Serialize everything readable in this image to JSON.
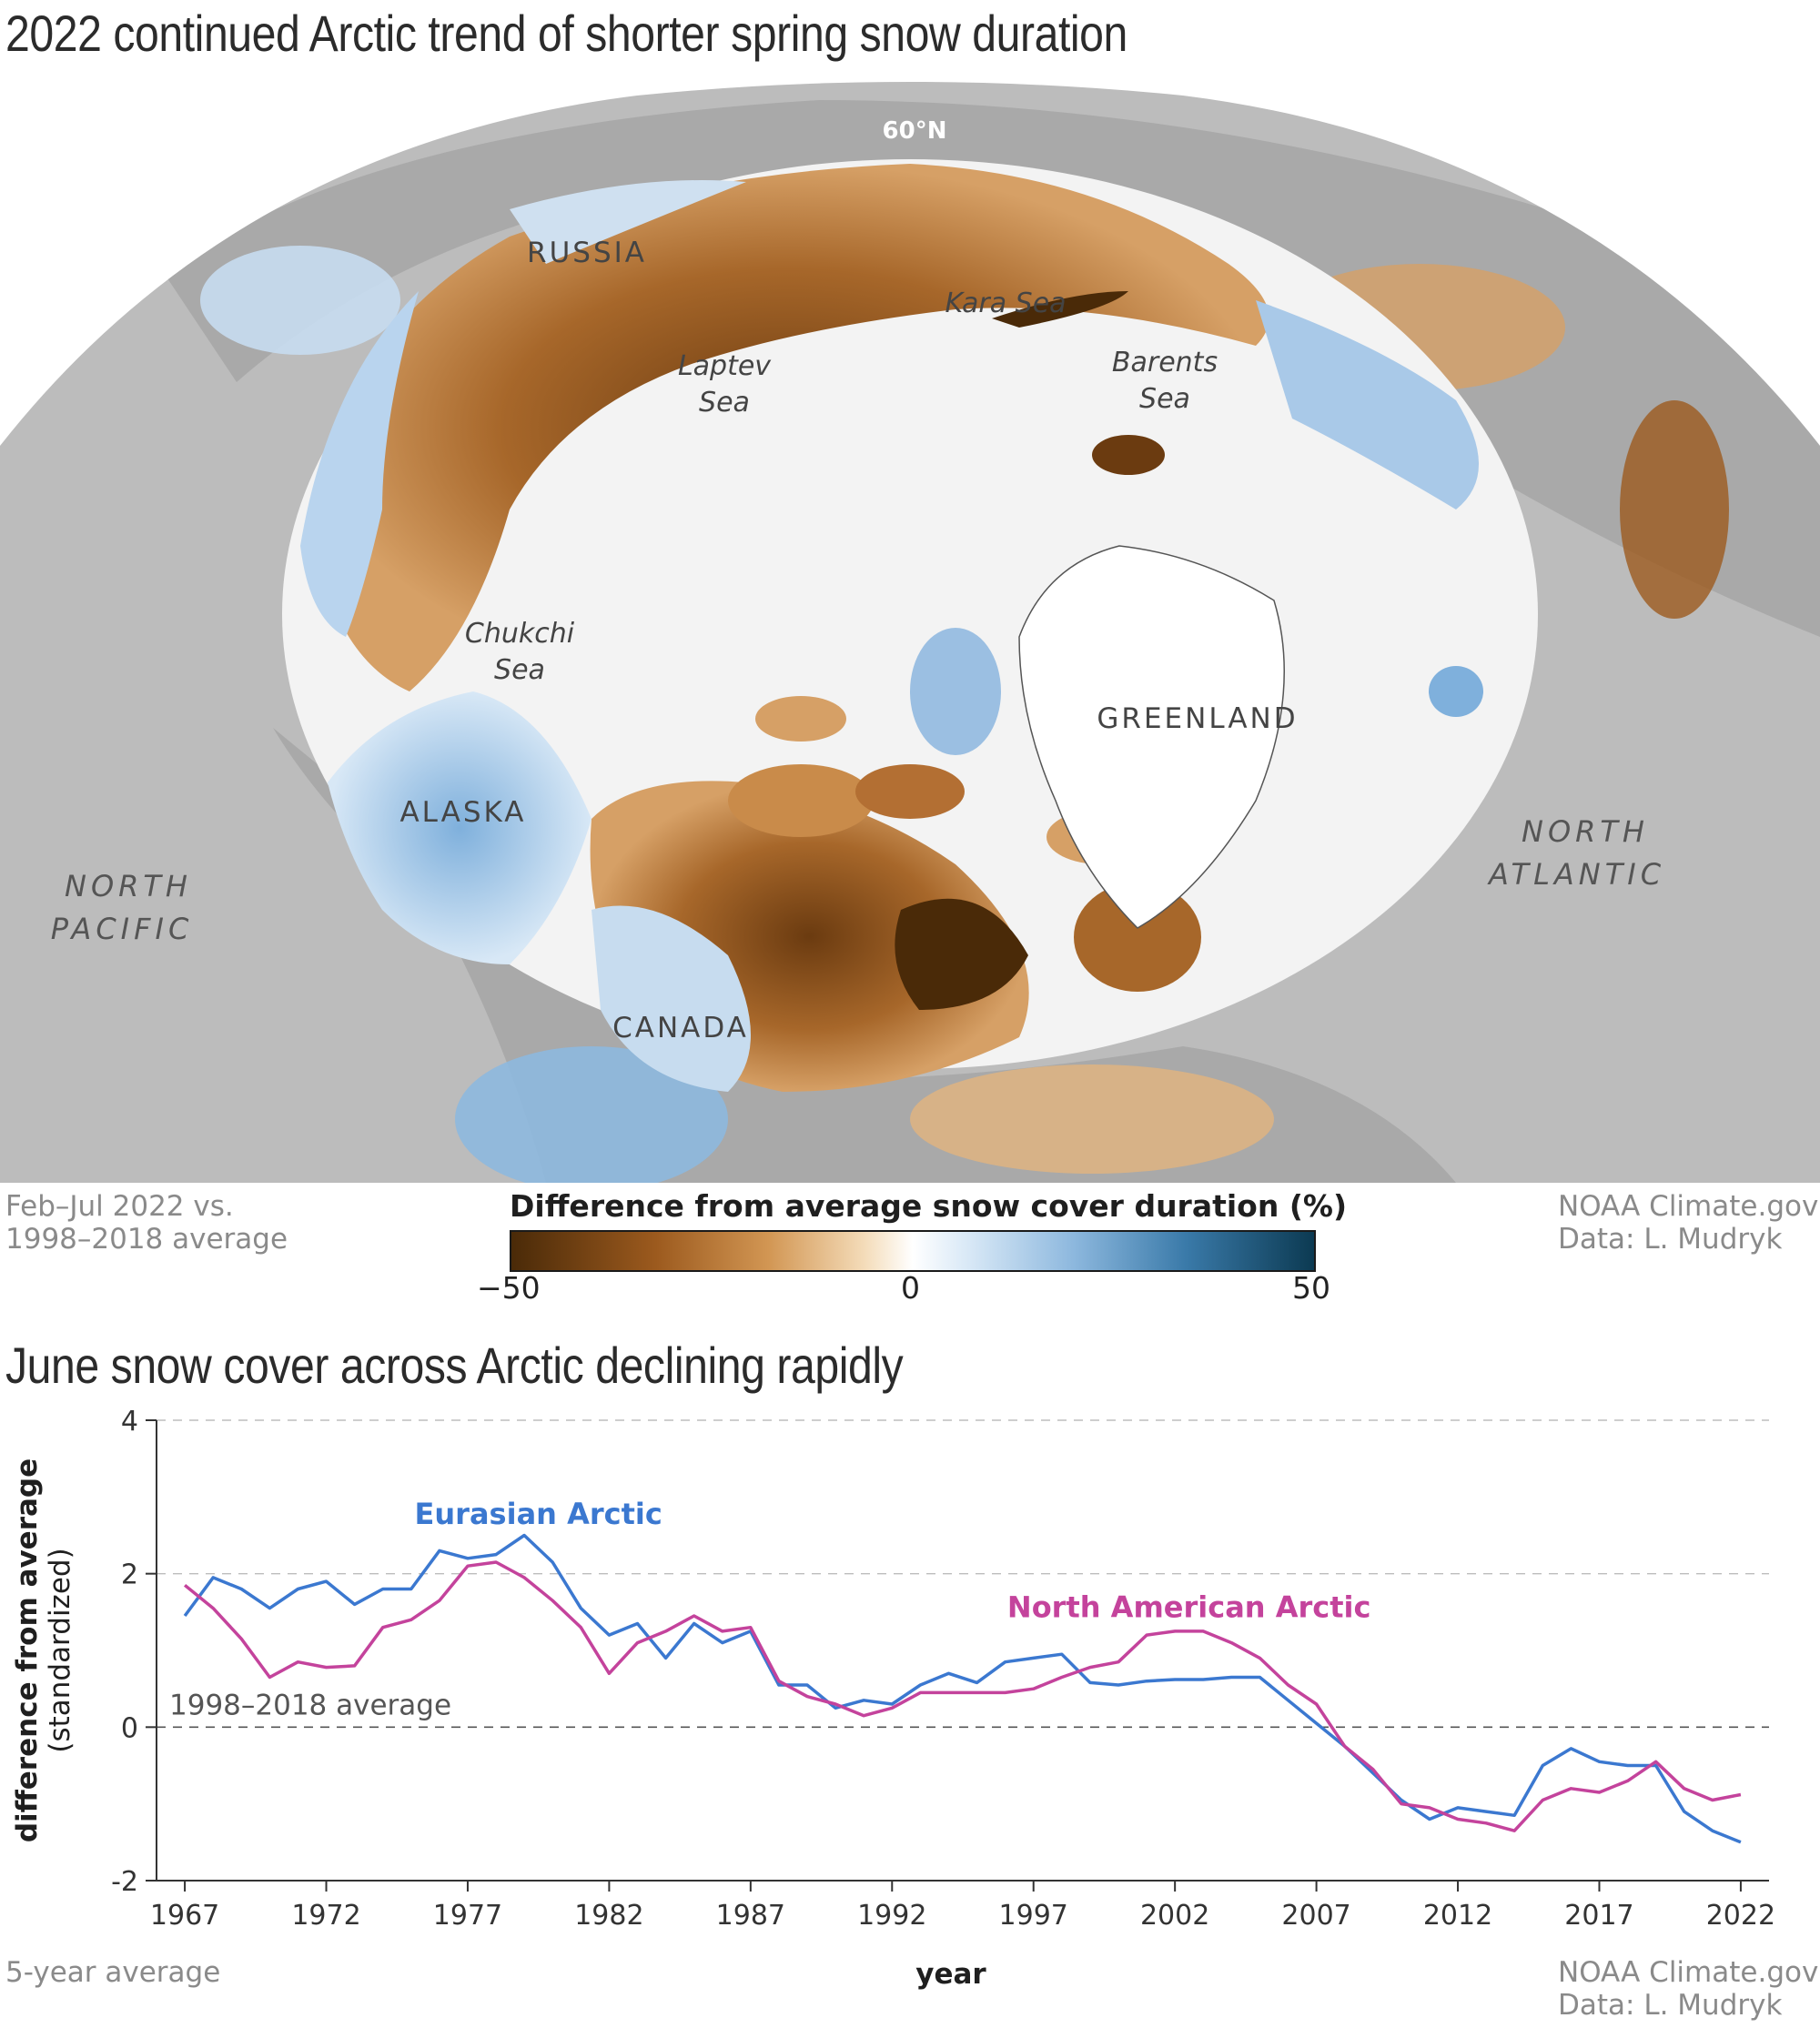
{
  "map": {
    "title": "2022 continued Arctic trend of shorter spring snow duration",
    "latitude_label": "60°N",
    "labels": {
      "russia": "RUSSIA",
      "kara_sea": "Kara Sea",
      "laptev_sea_1": "Laptev",
      "laptev_sea_2": "Sea",
      "barents_sea_1": "Barents",
      "barents_sea_2": "Sea",
      "chukchi_sea_1": "Chukchi",
      "chukchi_sea_2": "Sea",
      "greenland": "GREENLAND",
      "alaska": "ALASKA",
      "canada": "CANADA",
      "north_pacific_1": "NORTH",
      "north_pacific_2": "PACIFIC",
      "north_atlantic_1": "NORTH",
      "north_atlantic_2": "ATLANTIC"
    },
    "period_note_1": "Feb–Jul 2022 vs.",
    "period_note_2": "1998–2018 average",
    "credit_1": "NOAA Climate.gov",
    "credit_2": "Data: L. Mudryk",
    "legend": {
      "title": "Difference from average snow cover duration (%)",
      "min_label": "−50",
      "mid_label": "0",
      "max_label": "50",
      "colors": [
        "#4a2a08",
        "#9c5a1e",
        "#d29653",
        "#ffffff",
        "#8db8de",
        "#3a7aa9",
        "#0c3a52"
      ]
    }
  },
  "chart_data": {
    "type": "line",
    "title": "June snow cover across Arctic declining rapidly",
    "xlabel": "year",
    "ylabel": "difference from average (standardized)",
    "xlim": [
      1966,
      2023
    ],
    "ylim": [
      -2,
      4
    ],
    "xticks": [
      1967,
      1972,
      1977,
      1982,
      1987,
      1992,
      1997,
      2002,
      2007,
      2012,
      2017,
      2022
    ],
    "yticks": [
      -2,
      0,
      2,
      4
    ],
    "grid": "horizontal dashed",
    "reference_line": {
      "y": 0,
      "label": "1998–2018 average"
    },
    "x": [
      1967,
      1968,
      1969,
      1970,
      1971,
      1972,
      1973,
      1974,
      1975,
      1976,
      1977,
      1978,
      1979,
      1980,
      1981,
      1982,
      1983,
      1984,
      1985,
      1986,
      1987,
      1988,
      1989,
      1990,
      1991,
      1992,
      1993,
      1994,
      1995,
      1996,
      1997,
      1998,
      1999,
      2000,
      2001,
      2002,
      2003,
      2004,
      2005,
      2006,
      2007,
      2008,
      2009,
      2010,
      2011,
      2012,
      2013,
      2014,
      2015,
      2016,
      2017,
      2018,
      2019,
      2020,
      2021,
      2022
    ],
    "series": [
      {
        "name": "Eurasian Arctic",
        "color": "#3b78d0",
        "values": [
          1.45,
          1.95,
          1.8,
          1.55,
          1.8,
          1.9,
          1.6,
          1.8,
          1.8,
          2.3,
          2.2,
          2.25,
          2.5,
          2.15,
          1.55,
          1.2,
          1.35,
          0.9,
          1.35,
          1.1,
          1.25,
          0.55,
          0.55,
          0.25,
          0.35,
          0.3,
          0.55,
          0.7,
          0.58,
          0.85,
          0.9,
          0.95,
          0.58,
          0.55,
          0.6,
          0.62,
          0.62,
          0.65,
          0.65,
          0.35,
          0.05,
          -0.25,
          -0.6,
          -0.95,
          -1.2,
          -1.05,
          -1.1,
          -1.15,
          -0.5,
          -0.28,
          -0.45,
          -0.5,
          -0.5,
          -1.1,
          -1.35,
          -1.5
        ]
      },
      {
        "name": "North American Arctic",
        "color": "#c4439c",
        "values": [
          1.85,
          1.55,
          1.15,
          0.65,
          0.85,
          0.78,
          0.8,
          1.3,
          1.4,
          1.65,
          2.1,
          2.15,
          1.95,
          1.65,
          1.3,
          0.7,
          1.1,
          1.25,
          1.45,
          1.25,
          1.3,
          0.6,
          0.4,
          0.3,
          0.15,
          0.25,
          0.45,
          0.45,
          0.45,
          0.45,
          0.5,
          0.65,
          0.78,
          0.85,
          1.2,
          1.25,
          1.25,
          1.1,
          0.9,
          0.55,
          0.3,
          -0.25,
          -0.55,
          -1.0,
          -1.05,
          -1.2,
          -1.25,
          -1.35,
          -0.95,
          -0.8,
          -0.85,
          -0.7,
          -0.45,
          -0.8,
          -0.95,
          -0.88
        ]
      }
    ]
  },
  "chart_footer": {
    "left_note": "5-year average",
    "credit_1": "NOAA Climate.gov",
    "credit_2": "Data: L. Mudryk"
  }
}
